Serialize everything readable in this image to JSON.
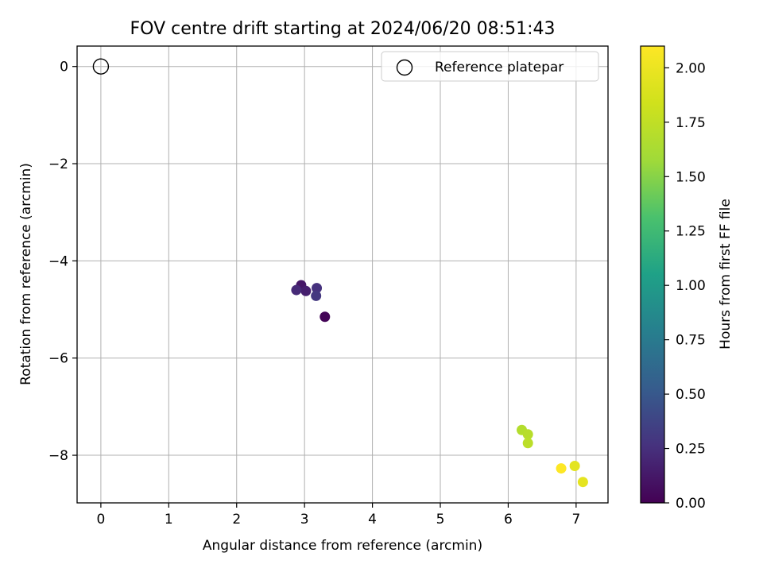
{
  "chart_data": {
    "type": "scatter",
    "title": "FOV centre drift starting at 2024/06/20 08:51:43",
    "xlabel": "Angular distance from reference (arcmin)",
    "ylabel": "Rotation from reference (arcmin)",
    "xlim": [
      -0.35,
      7.47
    ],
    "ylim": [
      -8.98,
      0.42
    ],
    "x_ticks": [
      0,
      1,
      2,
      3,
      4,
      5,
      6,
      7
    ],
    "y_ticks": [
      0,
      -2,
      -4,
      -6,
      -8
    ],
    "x_tick_labels": [
      "0",
      "1",
      "2",
      "3",
      "4",
      "5",
      "6",
      "7"
    ],
    "y_tick_labels": [
      "0",
      "−2",
      "−4",
      "−6",
      "−8"
    ],
    "grid": true,
    "legend": {
      "position": "top-right",
      "entries": [
        "Reference platepar"
      ]
    },
    "reference_point": {
      "name": "Reference platepar",
      "x": 0,
      "y": 0
    },
    "points": [
      {
        "x": 3.3,
        "y": -5.15,
        "hours": 0.02
      },
      {
        "x": 2.95,
        "y": -4.5,
        "hours": 0.12
      },
      {
        "x": 3.02,
        "y": -4.62,
        "hours": 0.16
      },
      {
        "x": 2.88,
        "y": -4.6,
        "hours": 0.22
      },
      {
        "x": 3.18,
        "y": -4.56,
        "hours": 0.26
      },
      {
        "x": 3.17,
        "y": -4.72,
        "hours": 0.3
      },
      {
        "x": 6.2,
        "y": -7.48,
        "hours": 1.68
      },
      {
        "x": 6.29,
        "y": -7.57,
        "hours": 1.7
      },
      {
        "x": 6.29,
        "y": -7.75,
        "hours": 1.72
      },
      {
        "x": 6.98,
        "y": -8.22,
        "hours": 1.95
      },
      {
        "x": 7.1,
        "y": -8.55,
        "hours": 1.96
      },
      {
        "x": 6.78,
        "y": -8.27,
        "hours": 2.1
      }
    ],
    "colorbar": {
      "label": "Hours from first FF file",
      "range": [
        0,
        2.1
      ],
      "ticks": [
        0.0,
        0.25,
        0.5,
        0.75,
        1.0,
        1.25,
        1.5,
        1.75,
        2.0
      ],
      "tick_labels": [
        "0.00",
        "0.25",
        "0.50",
        "0.75",
        "1.00",
        "1.25",
        "1.50",
        "1.75",
        "2.00"
      ],
      "colormap": "viridis"
    }
  }
}
